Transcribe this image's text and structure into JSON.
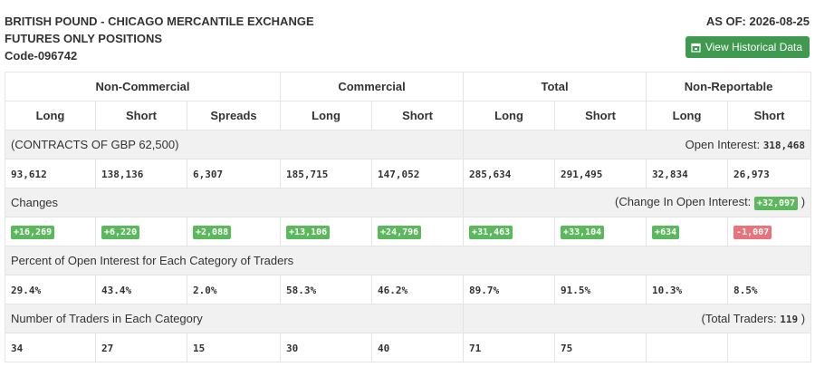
{
  "header": {
    "title_line1": "BRITISH POUND - CHICAGO MERCANTILE EXCHANGE",
    "title_line2": "FUTURES ONLY POSITIONS",
    "code": "Code-096742",
    "as_of": "AS OF: 2026-08-25",
    "button": "View Historical Data"
  },
  "table": {
    "groups": [
      "Non-Commercial",
      "Commercial",
      "Total",
      "Non-Reportable"
    ],
    "columns": [
      "Long",
      "Short",
      "Spreads",
      "Long",
      "Short",
      "Long",
      "Short",
      "Long",
      "Short"
    ],
    "contracts": {
      "label": "(CONTRACTS OF GBP 62,500)",
      "right_label": "Open Interest:",
      "right_value": "318,468",
      "values": [
        "93,612",
        "138,136",
        "6,307",
        "185,715",
        "147,052",
        "285,634",
        "291,495",
        "32,834",
        "26,973"
      ]
    },
    "changes": {
      "label": "Changes",
      "right_label": "(Change In Open Interest:",
      "right_value": "+32,097",
      "right_close": ")",
      "values": [
        "+16,269",
        "+6,220",
        "+2,088",
        "+13,106",
        "+24,796",
        "+31,463",
        "+33,104",
        "+634",
        "-1,007"
      ]
    },
    "percent": {
      "label": "Percent of Open Interest for Each Category of Traders",
      "values": [
        "29.4%",
        "43.4%",
        "2.0%",
        "58.3%",
        "46.2%",
        "89.7%",
        "91.5%",
        "10.3%",
        "8.5%"
      ]
    },
    "traders": {
      "label": "Number of Traders in Each Category",
      "right_label": "(Total Traders:",
      "right_value": "119",
      "right_close": ")",
      "values": [
        "34",
        "27",
        "15",
        "30",
        "40",
        "71",
        "75"
      ]
    }
  }
}
